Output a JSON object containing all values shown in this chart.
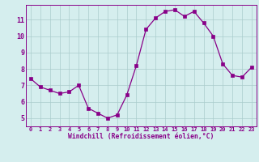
{
  "x": [
    0,
    1,
    2,
    3,
    4,
    5,
    6,
    7,
    8,
    9,
    10,
    11,
    12,
    13,
    14,
    15,
    16,
    17,
    18,
    19,
    20,
    21,
    22,
    23
  ],
  "y": [
    7.4,
    6.9,
    6.7,
    6.5,
    6.6,
    7.0,
    5.6,
    5.3,
    5.0,
    5.2,
    6.4,
    8.2,
    10.4,
    11.1,
    11.5,
    11.6,
    11.2,
    11.5,
    10.8,
    10.0,
    8.3,
    7.6,
    7.5,
    8.1
  ],
  "xlim": [
    -0.5,
    23.5
  ],
  "ylim": [
    4.5,
    11.9
  ],
  "yticks": [
    5,
    6,
    7,
    8,
    9,
    10,
    11
  ],
  "xticks": [
    0,
    1,
    2,
    3,
    4,
    5,
    6,
    7,
    8,
    9,
    10,
    11,
    12,
    13,
    14,
    15,
    16,
    17,
    18,
    19,
    20,
    21,
    22,
    23
  ],
  "xlabel": "Windchill (Refroidissement éolien,°C)",
  "line_color": "#880088",
  "marker_color": "#880088",
  "bg_color": "#d5eeee",
  "grid_color": "#aacccc",
  "axis_color": "#880088",
  "tick_color": "#880088",
  "xlabel_color": "#880088",
  "tick_fontsize": 5.0,
  "xlabel_fontsize": 5.8,
  "marker_size": 2.2,
  "line_width": 0.9
}
